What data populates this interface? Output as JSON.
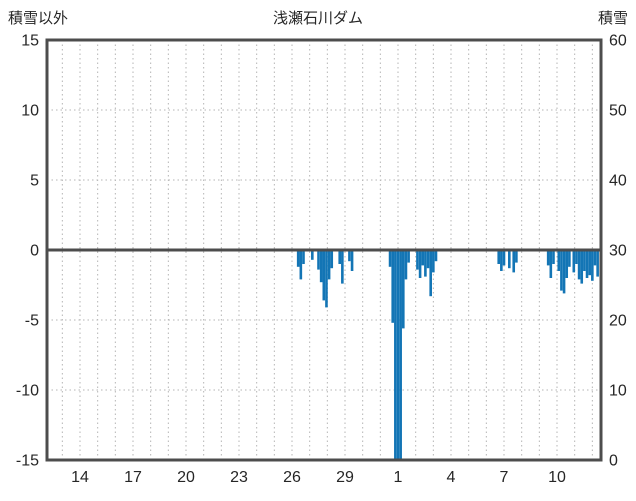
{
  "header": {
    "left_title": "積雪以外",
    "title": "浅瀬石川ダム",
    "right_title": "積雪"
  },
  "chart_data": {
    "type": "bar",
    "title": "浅瀬石川ダム",
    "left_axis": {
      "title": "積雪以外",
      "ticks": [
        15,
        10,
        5,
        0,
        -5,
        -10,
        -15
      ],
      "range": [
        -15,
        15
      ]
    },
    "right_axis": {
      "title": "積雪",
      "ticks": [
        60,
        50,
        40,
        30,
        20,
        10,
        0
      ],
      "range": [
        0,
        60
      ]
    },
    "x_axis": {
      "tick_labels": [
        "14",
        "17",
        "20",
        "23",
        "26",
        "29",
        "1",
        "4",
        "7",
        "10"
      ],
      "tick_days": [
        14,
        17,
        20,
        23,
        26,
        29,
        32,
        35,
        38,
        41
      ],
      "range_days": [
        12.1,
        43.5
      ],
      "gridline_every_days": 1
    },
    "grid": true,
    "bar_color": "#1375b5",
    "axis_line_color": "#4d4d4d",
    "gridline_color": "#b5b5b5",
    "bars": [
      [
        26.35,
        -1.2
      ],
      [
        26.5,
        -2.1
      ],
      [
        26.65,
        -1.0
      ],
      [
        27.15,
        -0.7
      ],
      [
        27.5,
        -1.4
      ],
      [
        27.65,
        -2.3
      ],
      [
        27.8,
        -3.6
      ],
      [
        27.95,
        -4.1
      ],
      [
        28.1,
        -2.1
      ],
      [
        28.25,
        -1.3
      ],
      [
        28.7,
        -1.0
      ],
      [
        28.85,
        -2.4
      ],
      [
        29.25,
        -0.8
      ],
      [
        29.4,
        -1.5
      ],
      [
        31.55,
        -1.2
      ],
      [
        31.7,
        -5.2
      ],
      [
        31.85,
        -15
      ],
      [
        32.0,
        -15
      ],
      [
        32.15,
        -15
      ],
      [
        32.3,
        -5.6
      ],
      [
        32.45,
        -2.1
      ],
      [
        32.6,
        -0.9
      ],
      [
        33.1,
        -1.4
      ],
      [
        33.25,
        -2.0
      ],
      [
        33.4,
        -1.1
      ],
      [
        33.55,
        -1.9
      ],
      [
        33.7,
        -1.3
      ],
      [
        33.85,
        -3.3
      ],
      [
        34.0,
        -1.6
      ],
      [
        34.15,
        -0.8
      ],
      [
        37.7,
        -1.0
      ],
      [
        37.85,
        -1.5
      ],
      [
        38.0,
        -1.1
      ],
      [
        38.3,
        -1.3
      ],
      [
        38.55,
        -1.6
      ],
      [
        38.7,
        -0.9
      ],
      [
        40.5,
        -1.1
      ],
      [
        40.65,
        -2.0
      ],
      [
        40.8,
        -1.0
      ],
      [
        41.1,
        -1.5
      ],
      [
        41.25,
        -2.9
      ],
      [
        41.4,
        -3.1
      ],
      [
        41.55,
        -2.0
      ],
      [
        41.7,
        -1.2
      ],
      [
        41.95,
        -1.6
      ],
      [
        42.1,
        -1.0
      ],
      [
        42.25,
        -2.1
      ],
      [
        42.4,
        -2.4
      ],
      [
        42.55,
        -1.5
      ],
      [
        42.7,
        -2.0
      ],
      [
        42.85,
        -1.8
      ],
      [
        43.0,
        -2.2
      ],
      [
        43.15,
        -1.1
      ],
      [
        43.3,
        -1.9
      ]
    ]
  }
}
